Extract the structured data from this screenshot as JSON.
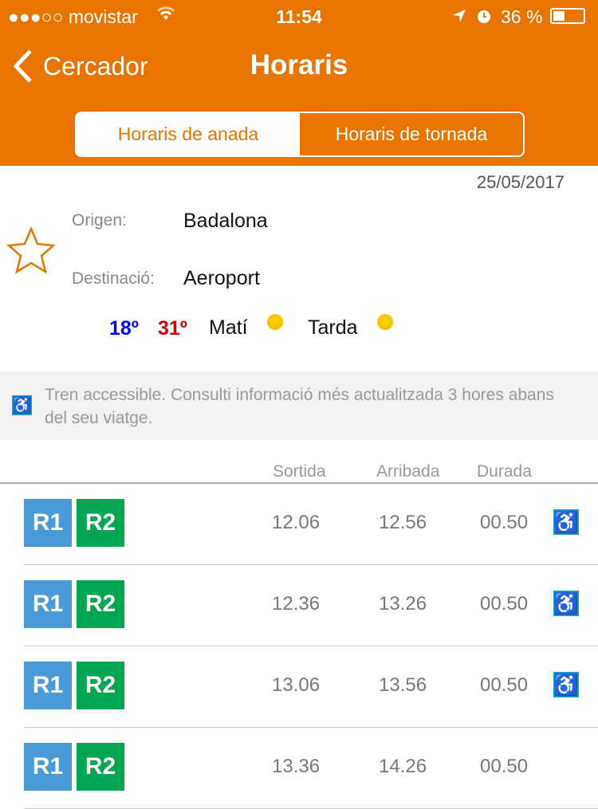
{
  "status": {
    "carrier": "●●●○○ movistar",
    "time": "11:54",
    "battery": "36 %"
  },
  "nav": {
    "back_label": "Cercador",
    "title": "Horaris"
  },
  "tabs": [
    {
      "label": "Horaris de anada",
      "selected": true
    },
    {
      "label": "Horaris de tornada",
      "selected": false
    }
  ],
  "date": "25/05/2017",
  "trip": {
    "origin_label": "Origen:",
    "origin": "Badalona",
    "dest_label": "Destinació:",
    "dest": "Aeroport"
  },
  "weather": {
    "min": "18º",
    "max": "31º",
    "morning": "Matí",
    "afternoon": "Tarda",
    "min_color": "#0000ff",
    "max_color": "#cc0000"
  },
  "notice": "Tren accessible. Consulti informació més actualitzada 3 hores abans del seu viatge.",
  "columns": {
    "departure": "Sortida",
    "arrival": "Arribada",
    "duration": "Durada"
  },
  "lines": {
    "r1": "R1",
    "r2": "R2",
    "r1_color": "#4a9ad8",
    "r2_color": "#00a651"
  },
  "rows": [
    {
      "dep": "12.06",
      "arr": "12.56",
      "dur": "00.50",
      "accessible": true
    },
    {
      "dep": "12.36",
      "arr": "13.26",
      "dur": "00.50",
      "accessible": true
    },
    {
      "dep": "13.06",
      "arr": "13.56",
      "dur": "00.50",
      "accessible": true
    },
    {
      "dep": "13.36",
      "arr": "14.26",
      "dur": "00.50",
      "accessible": false
    }
  ]
}
